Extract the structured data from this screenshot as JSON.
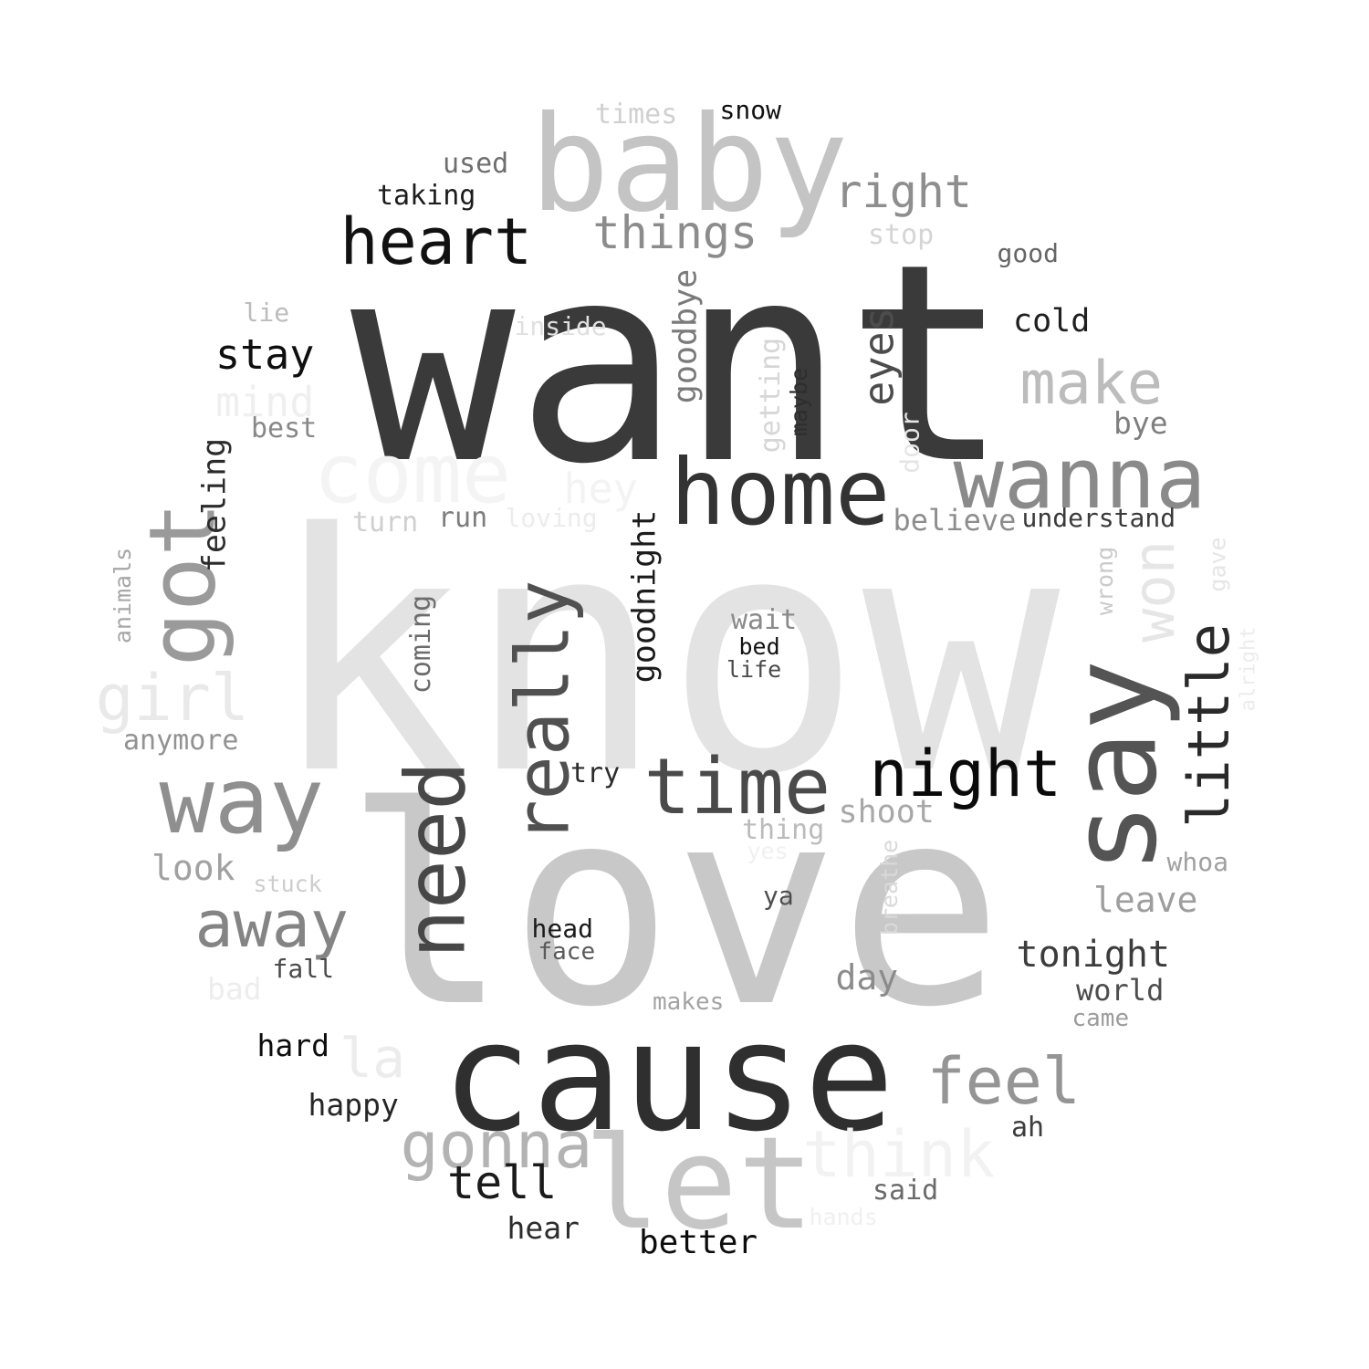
{
  "words": [
    {
      "text": "want",
      "color": "#3a3a3a"
    },
    {
      "text": "know",
      "color": "#e3e3e3"
    },
    {
      "text": "love",
      "color": "#c8c8c8"
    },
    {
      "text": "cause",
      "color": "#2f2f2f"
    },
    {
      "text": "baby",
      "color": "#c4c4c4"
    },
    {
      "text": "home",
      "color": "#333333"
    },
    {
      "text": "wanna",
      "color": "#8a8a8a"
    },
    {
      "text": "say",
      "color": "#545454"
    },
    {
      "text": "come",
      "color": "#f4f4f4"
    },
    {
      "text": "heart",
      "color": "#111111"
    },
    {
      "text": "way",
      "color": "#8f8f8f"
    },
    {
      "text": "time",
      "color": "#4a4a4a"
    },
    {
      "text": "night",
      "color": "#0a0a0a"
    },
    {
      "text": "need",
      "color": "#474747"
    },
    {
      "text": "let",
      "color": "#c6c6c6"
    },
    {
      "text": "got",
      "color": "#9a9a9a"
    },
    {
      "text": "really",
      "color": "#505050"
    },
    {
      "text": "little",
      "color": "#2a2a2a"
    },
    {
      "text": "away",
      "color": "#848484"
    },
    {
      "text": "make",
      "color": "#bcbcbc"
    },
    {
      "text": "gonna",
      "color": "#b3b3b3"
    },
    {
      "text": "feel",
      "color": "#959595"
    },
    {
      "text": "think",
      "color": "#f2f2f2"
    },
    {
      "text": "won",
      "color": "#e6e6e6"
    },
    {
      "text": "girl",
      "color": "#e9e9e9"
    },
    {
      "text": "things",
      "color": "#8c8c8c"
    },
    {
      "text": "right",
      "color": "#8e8e8e"
    },
    {
      "text": "tell",
      "color": "#1a1a1a"
    },
    {
      "text": "eyes",
      "color": "#4c4c4c"
    },
    {
      "text": "stay",
      "color": "#0f0f0f"
    },
    {
      "text": "la",
      "color": "#ececec"
    },
    {
      "text": "tonight",
      "color": "#3c3c3c"
    },
    {
      "text": "mind",
      "color": "#efefef"
    },
    {
      "text": "hey",
      "color": "#f3f3f3"
    },
    {
      "text": "goodnight",
      "color": "#1b1b1b"
    },
    {
      "text": "goodbye",
      "color": "#7a7a7a"
    },
    {
      "text": "feeling",
      "color": "#2b2b2b"
    },
    {
      "text": "better",
      "color": "#0c0c0c"
    },
    {
      "text": "cold",
      "color": "#1f1f1f"
    },
    {
      "text": "leave",
      "color": "#9e9e9e"
    },
    {
      "text": "look",
      "color": "#a1a1a1"
    },
    {
      "text": "day",
      "color": "#8b8b8b"
    },
    {
      "text": "shoot",
      "color": "#a8a8a8"
    },
    {
      "text": "world",
      "color": "#4d4d4d"
    },
    {
      "text": "hear",
      "color": "#2d2d2d"
    },
    {
      "text": "happy",
      "color": "#262626"
    },
    {
      "text": "hard",
      "color": "#0d0d0d"
    },
    {
      "text": "believe",
      "color": "#8d8d8d"
    },
    {
      "text": "bye",
      "color": "#7f7f7f"
    },
    {
      "text": "understand",
      "color": "#3a3a3a"
    },
    {
      "text": "anymore",
      "color": "#929292"
    },
    {
      "text": "best",
      "color": "#888888"
    },
    {
      "text": "taking",
      "color": "#1c1c1c"
    },
    {
      "text": "used",
      "color": "#6e6e6e"
    },
    {
      "text": "times",
      "color": "#d0d0d0"
    },
    {
      "text": "snow",
      "color": "#111111"
    },
    {
      "text": "stop",
      "color": "#d5d5d5"
    },
    {
      "text": "good",
      "color": "#666666"
    },
    {
      "text": "lie",
      "color": "#bcbcbc"
    },
    {
      "text": "inside",
      "color": "#e0e0e0"
    },
    {
      "text": "getting",
      "color": "#d6d6d6"
    },
    {
      "text": "maybe",
      "color": "#2e2e2e"
    },
    {
      "text": "door",
      "color": "#e5e5e5"
    },
    {
      "text": "run",
      "color": "#7d7d7d"
    },
    {
      "text": "turn",
      "color": "#cfcfcf"
    },
    {
      "text": "loving",
      "color": "#ececec"
    },
    {
      "text": "animals",
      "color": "#a7a7a7"
    },
    {
      "text": "coming",
      "color": "#6c6c6c"
    },
    {
      "text": "wait",
      "color": "#8a8a8a"
    },
    {
      "text": "bed",
      "color": "#111111"
    },
    {
      "text": "life",
      "color": "#4a4a4a"
    },
    {
      "text": "wrong",
      "color": "#cacaca"
    },
    {
      "text": "gave",
      "color": "#e6e6e6"
    },
    {
      "text": "alright",
      "color": "#ececec"
    },
    {
      "text": "try",
      "color": "#2c2c2c"
    },
    {
      "text": "thing",
      "color": "#bbbbbb"
    },
    {
      "text": "yes",
      "color": "#f0f0f0"
    },
    {
      "text": "breathe",
      "color": "#d9d9d9"
    },
    {
      "text": "whoa",
      "color": "#a0a0a0"
    },
    {
      "text": "stuck",
      "color": "#cdcdcd"
    },
    {
      "text": "ya",
      "color": "#4f4f4f"
    },
    {
      "text": "head",
      "color": "#1a1a1a"
    },
    {
      "text": "face",
      "color": "#5a5a5a"
    },
    {
      "text": "fall",
      "color": "#4b4b4b"
    },
    {
      "text": "bad",
      "color": "#ededed"
    },
    {
      "text": "makes",
      "color": "#a3a3a3"
    },
    {
      "text": "came",
      "color": "#9c9c9c"
    },
    {
      "text": "ah",
      "color": "#3d3d3d"
    },
    {
      "text": "said",
      "color": "#6a6a6a"
    },
    {
      "text": "hands",
      "color": "#f0f0f0"
    }
  ]
}
